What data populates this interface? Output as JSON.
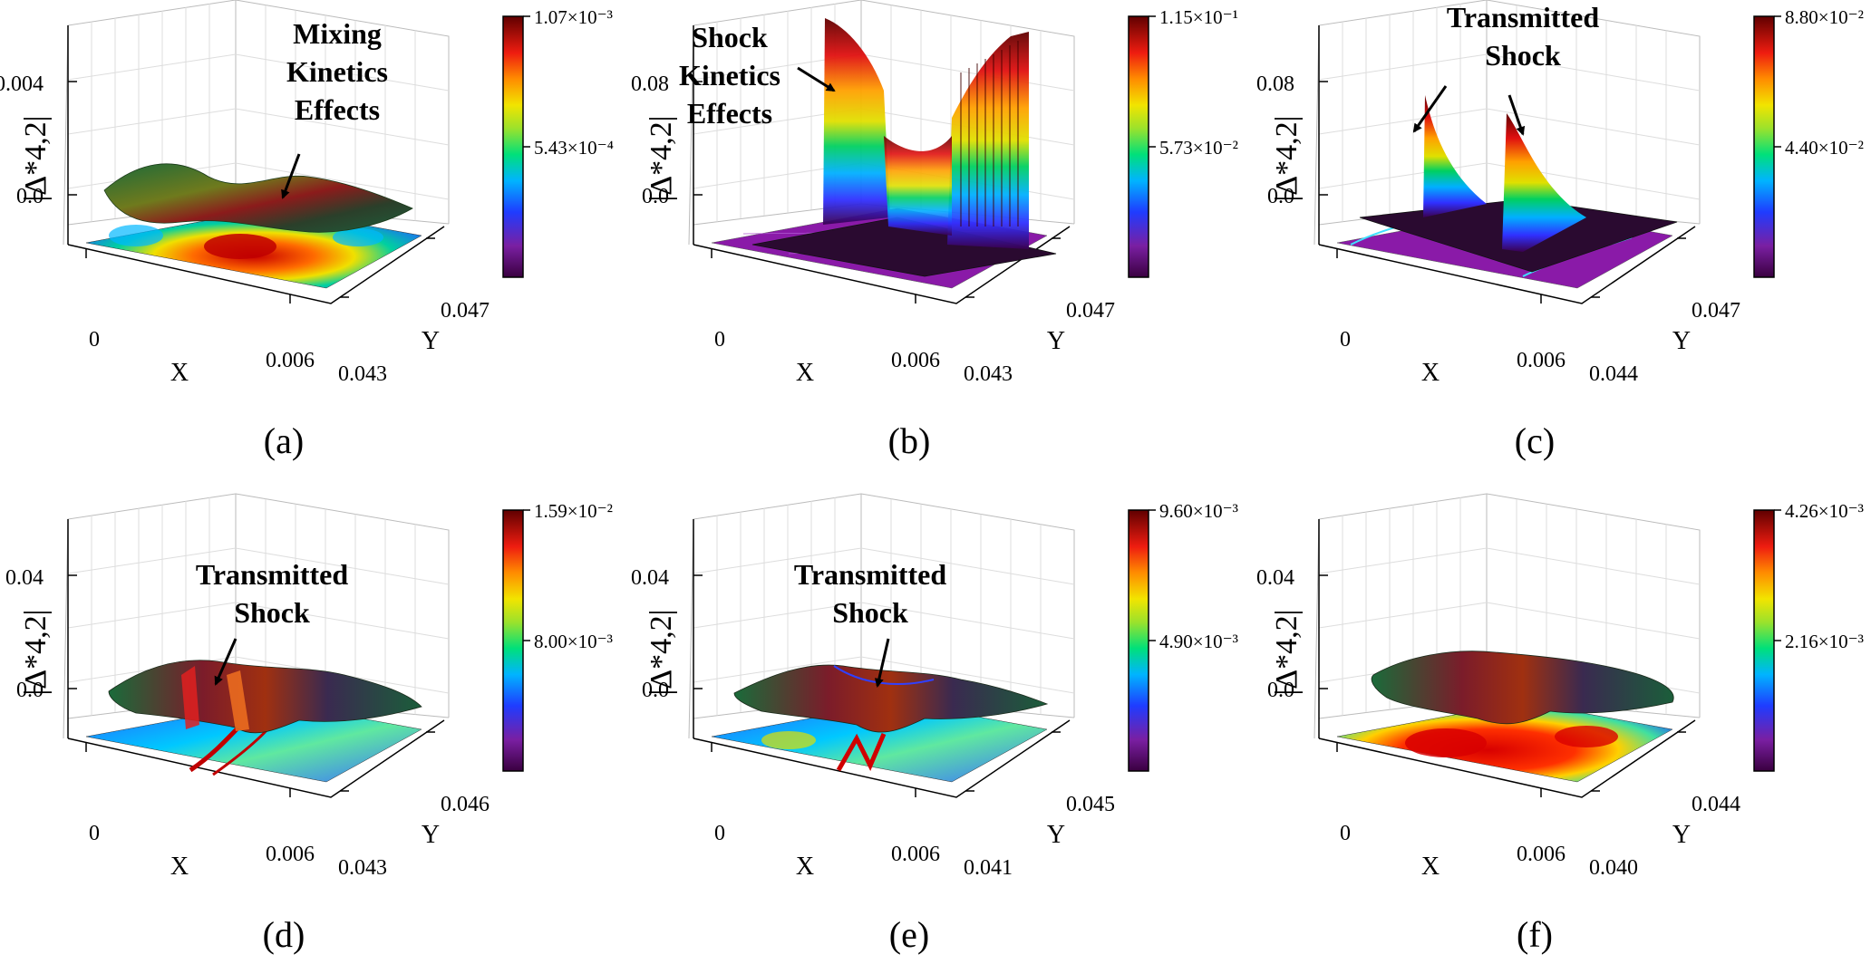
{
  "figure": {
    "panels": [
      {
        "label": "(a)",
        "z_axis_label": "|Δ*4,2|",
        "z_ticks": [
          "0.004",
          "0.0"
        ],
        "x_axis_label": "X",
        "x_ticks": [
          "0",
          "0.006"
        ],
        "y_axis_label": "Y",
        "y_ticks": [
          "0.043",
          "0.047"
        ],
        "colorbar_ticks": [
          "1.07×10⁻³",
          "5.43×10⁻⁴"
        ],
        "annotations": [
          {
            "lines": [
              "Mixing",
              "Kinetics",
              "Effects"
            ]
          }
        ]
      },
      {
        "label": "(b)",
        "z_axis_label": "|Δ*4,2|",
        "z_ticks": [
          "0.08",
          "0.0"
        ],
        "x_axis_label": "X",
        "x_ticks": [
          "0",
          "0.006"
        ],
        "y_axis_label": "Y",
        "y_ticks": [
          "0.043",
          "0.047"
        ],
        "colorbar_ticks": [
          "1.15×10⁻¹",
          "5.73×10⁻²"
        ],
        "annotations": [
          {
            "lines": [
              "Shock",
              "Kinetics",
              "Effects"
            ]
          }
        ]
      },
      {
        "label": "(c)",
        "z_axis_label": "|Δ*4,2|",
        "z_ticks": [
          "0.08",
          "0.0"
        ],
        "x_axis_label": "X",
        "x_ticks": [
          "0",
          "0.006"
        ],
        "y_axis_label": "Y",
        "y_ticks": [
          "0.044",
          "0.047"
        ],
        "colorbar_ticks": [
          "8.80×10⁻²",
          "4.40×10⁻²"
        ],
        "annotations": [
          {
            "lines": [
              "Transmitted",
              "Shock"
            ]
          }
        ]
      },
      {
        "label": "(d)",
        "z_axis_label": "|Δ*4,2|",
        "z_ticks": [
          "0.04",
          "0.0"
        ],
        "x_axis_label": "X",
        "x_ticks": [
          "0",
          "0.006"
        ],
        "y_axis_label": "Y",
        "y_ticks": [
          "0.043",
          "0.046"
        ],
        "colorbar_ticks": [
          "1.59×10⁻²",
          "8.00×10⁻³"
        ],
        "annotations": [
          {
            "lines": [
              "Transmitted",
              "Shock"
            ]
          }
        ]
      },
      {
        "label": "(e)",
        "z_axis_label": "|Δ*4,2|",
        "z_ticks": [
          "0.04",
          "0.0"
        ],
        "x_axis_label": "X",
        "x_ticks": [
          "0",
          "0.006"
        ],
        "y_axis_label": "Y",
        "y_ticks": [
          "0.041",
          "0.045"
        ],
        "colorbar_ticks": [
          "9.60×10⁻³",
          "4.90×10⁻³"
        ],
        "annotations": [
          {
            "lines": [
              "Transmitted",
              "Shock"
            ]
          }
        ]
      },
      {
        "label": "(f)",
        "z_axis_label": "|Δ*4,2|",
        "z_ticks": [
          "0.04",
          "0.0"
        ],
        "x_axis_label": "X",
        "x_ticks": [
          "0",
          "0.006"
        ],
        "y_axis_label": "Y",
        "y_ticks": [
          "0.040",
          "0.044"
        ],
        "colorbar_ticks": [
          "4.26×10⁻³",
          "2.16×10⁻³"
        ],
        "annotations": []
      }
    ],
    "colormap": [
      "#4b0082",
      "#8a2be2",
      "#0000ff",
      "#00bfff",
      "#00ff80",
      "#adff2f",
      "#ffff00",
      "#ffa500",
      "#ff0000",
      "#8b0000"
    ]
  },
  "chart_data": [
    {
      "type": "heatmap",
      "subtype": "3d-surface",
      "xlabel": "X",
      "ylabel": "Y",
      "zlabel": "|Δ*4,2|",
      "x_ticks": [
        0,
        0.006
      ],
      "y_ticks": [
        0.043,
        0.047
      ],
      "z_ticks": [
        0.0,
        0.004
      ],
      "colorbar_range": [
        0,
        0.00107
      ],
      "colorbar_ticks": [
        0.000543,
        0.00107
      ]
    },
    {
      "type": "heatmap",
      "subtype": "3d-surface",
      "xlabel": "X",
      "ylabel": "Y",
      "zlabel": "|Δ*4,2|",
      "x_ticks": [
        0,
        0.006
      ],
      "y_ticks": [
        0.043,
        0.047
      ],
      "z_ticks": [
        0.0,
        0.08
      ],
      "colorbar_range": [
        0,
        0.115
      ],
      "colorbar_ticks": [
        0.0573,
        0.115
      ]
    },
    {
      "type": "heatmap",
      "subtype": "3d-surface",
      "xlabel": "X",
      "ylabel": "Y",
      "zlabel": "|Δ*4,2|",
      "x_ticks": [
        0,
        0.006
      ],
      "y_ticks": [
        0.044,
        0.047
      ],
      "z_ticks": [
        0.0,
        0.08
      ],
      "colorbar_range": [
        0,
        0.088
      ],
      "colorbar_ticks": [
        0.044,
        0.088
      ]
    },
    {
      "type": "heatmap",
      "subtype": "3d-surface",
      "xlabel": "X",
      "ylabel": "Y",
      "zlabel": "|Δ*4,2|",
      "x_ticks": [
        0,
        0.006
      ],
      "y_ticks": [
        0.043,
        0.046
      ],
      "z_ticks": [
        0.0,
        0.04
      ],
      "colorbar_range": [
        0,
        0.0159
      ],
      "colorbar_ticks": [
        0.008,
        0.0159
      ]
    },
    {
      "type": "heatmap",
      "subtype": "3d-surface",
      "xlabel": "X",
      "ylabel": "Y",
      "zlabel": "|Δ*4,2|",
      "x_ticks": [
        0,
        0.006
      ],
      "y_ticks": [
        0.041,
        0.045
      ],
      "z_ticks": [
        0.0,
        0.04
      ],
      "colorbar_range": [
        0,
        0.0096
      ],
      "colorbar_ticks": [
        0.0049,
        0.0096
      ]
    },
    {
      "type": "heatmap",
      "subtype": "3d-surface",
      "xlabel": "X",
      "ylabel": "Y",
      "zlabel": "|Δ*4,2|",
      "x_ticks": [
        0,
        0.006
      ],
      "y_ticks": [
        0.04,
        0.044
      ],
      "z_ticks": [
        0.0,
        0.04
      ],
      "colorbar_range": [
        0,
        0.00426
      ],
      "colorbar_ticks": [
        0.00216,
        0.00426
      ]
    }
  ]
}
